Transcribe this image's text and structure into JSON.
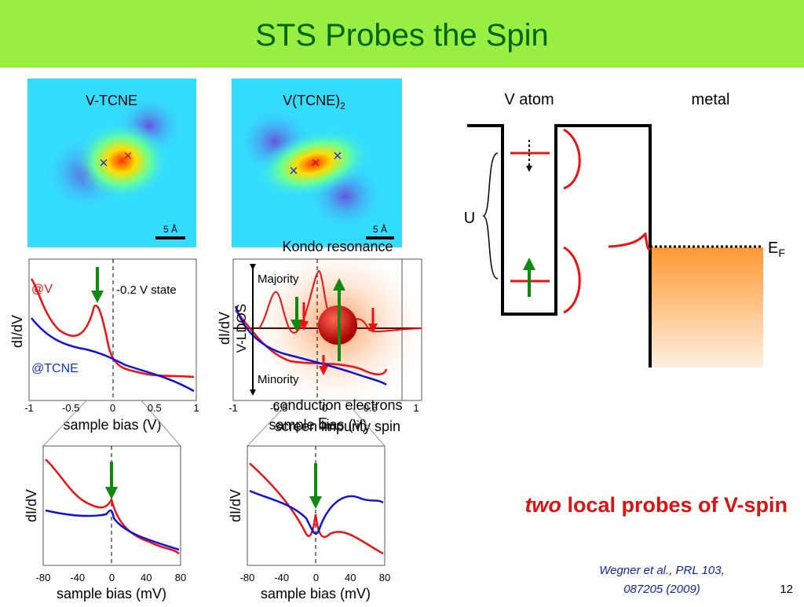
{
  "title": "STS Probes the Spin",
  "images": [
    {
      "label": "V-TCNE",
      "scale": "5 Å"
    },
    {
      "label": "V(TCNE)",
      "sub": "2",
      "scale": "5 Å"
    }
  ],
  "plots": [
    {
      "ylabel": "dI/dV",
      "xlabel": "sample bias (V)",
      "xticks": [
        "-1",
        "-0.5",
        "0",
        "0.5",
        "1"
      ],
      "labels": [
        "@V",
        "@TCNE",
        "-0.2 V state"
      ]
    },
    {
      "ylabel": "dI/dV",
      "xlabel": "sample bias (V)",
      "xticks": [
        "-1",
        "-0.5",
        "0",
        "0.5",
        "1"
      ],
      "labels": [
        "Kondo resonance",
        "Majority",
        "Minority",
        "V-LDOS",
        "conduction electrons",
        "screen impurity spin"
      ],
      "ef": {
        "text": "E",
        "sub": "F"
      }
    },
    {
      "ylabel": "dI/dV",
      "xlabel": "sample bias (mV)",
      "xticks": [
        "-80",
        "-40",
        "0",
        "40",
        "80"
      ]
    },
    {
      "ylabel": "dI/dV",
      "xlabel": "sample bias (mV)",
      "xticks": [
        "-80",
        "-40",
        "0",
        "40",
        "80"
      ]
    }
  ],
  "diagram": {
    "left": "V atom",
    "right": "metal",
    "u": "U",
    "ef": {
      "text": "E",
      "sub": "F"
    }
  },
  "conclusion": {
    "em": "two",
    "rest": " local probes of V-spin"
  },
  "citation": [
    "Wegner et al., PRL 103,",
    "087205 (2009)"
  ],
  "page": "12"
}
